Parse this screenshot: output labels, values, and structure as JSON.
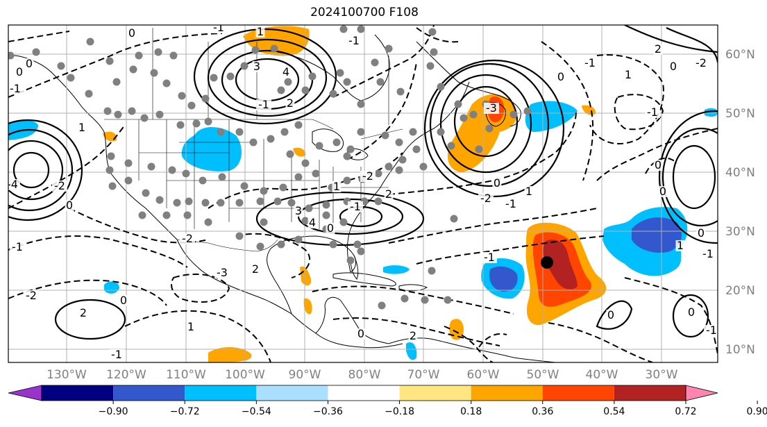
{
  "title": "2024100700 F108",
  "lat_labels": [
    "60°N",
    "50°N",
    "40°N",
    "30°N",
    "20°N",
    "10°N"
  ],
  "lon_labels": [
    "130°W",
    "120°W",
    "110°W",
    "100°W",
    "90°W",
    "80°W",
    "70°W",
    "60°W",
    "50°W",
    "40°W",
    "30°W"
  ],
  "colorbar": {
    "colors": [
      "#9933cc",
      "#000080",
      "#3357cc",
      "#00bfff",
      "#aadfff",
      "#ffffff",
      "#ffe680",
      "#ffa500",
      "#ff4500",
      "#b22222",
      "#ff85b0"
    ],
    "ticks": [
      "−0.90",
      "−0.72",
      "−0.54",
      "−0.36",
      "−0.18",
      "0.18",
      "0.36",
      "0.54",
      "0.72",
      "0.90"
    ]
  },
  "contour_labels": [
    "0",
    "0",
    "-1",
    "3",
    "4",
    "0",
    "-1",
    "1",
    "-1",
    "2",
    "-1",
    "-3",
    "-4",
    "-2",
    "0",
    "1",
    "-1",
    "-2",
    "2",
    "0",
    "1",
    "-1",
    "-2",
    "-3",
    "2",
    "3",
    "4",
    "0",
    "-1",
    "-2",
    "2",
    "1",
    "-2",
    "-1",
    "-1",
    "0",
    "1",
    "0",
    "-1",
    "1",
    "2",
    "0",
    "-2",
    "-1",
    "0",
    "1",
    "0",
    "-1",
    "0",
    "0",
    "-1",
    "0",
    "0",
    "2"
  ]
}
